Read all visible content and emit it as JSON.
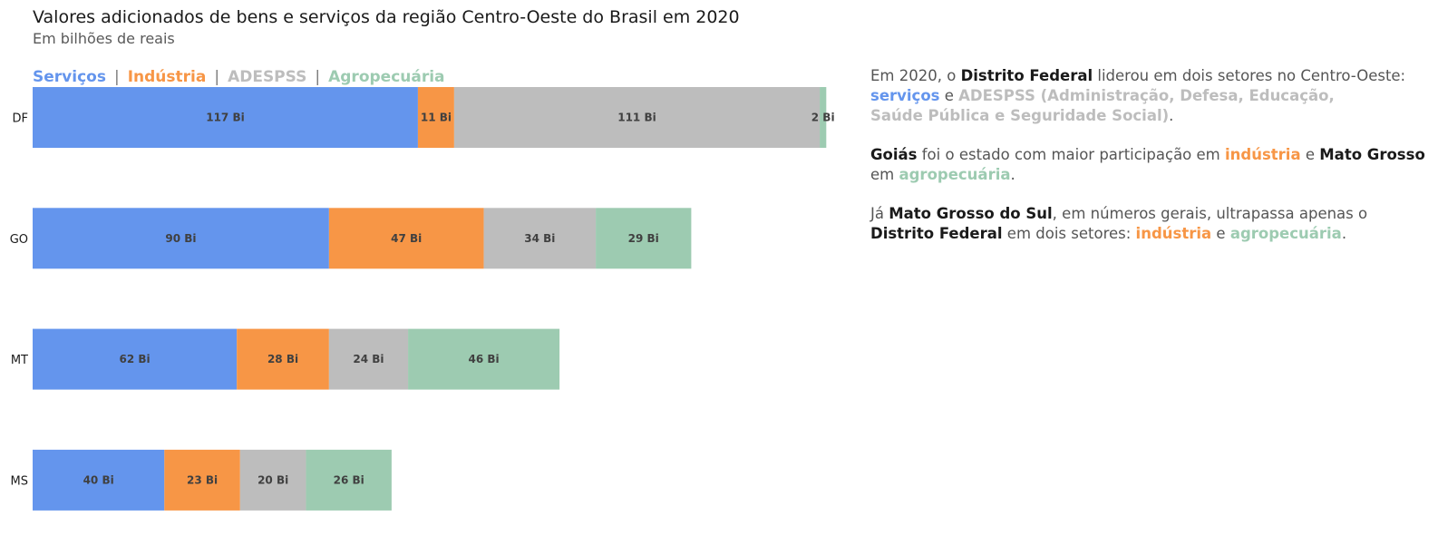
{
  "header": {
    "title": "Valores adicionados de bens e serviços da região Centro-Oeste do Brasil em 2020",
    "subtitle": "Em bilhões de reais"
  },
  "legend": {
    "items": [
      "Serviços",
      "Indústria",
      "ADESPSS",
      "Agropecuária"
    ],
    "separator": "|"
  },
  "chart_data": {
    "type": "bar",
    "orientation": "horizontal",
    "stacked": true,
    "categories": [
      "DF",
      "GO",
      "MT",
      "MS"
    ],
    "series": [
      {
        "name": "Serviços",
        "color": "#6495ed",
        "values": [
          117,
          90,
          62,
          40
        ]
      },
      {
        "name": "Indústria",
        "color": "#f79646",
        "values": [
          11,
          47,
          28,
          23
        ]
      },
      {
        "name": "ADESPSS",
        "color": "#bdbdbd",
        "values": [
          111,
          34,
          24,
          20
        ]
      },
      {
        "name": "Agropecuária",
        "color": "#9dcbb1",
        "values": [
          2,
          29,
          46,
          26
        ]
      }
    ],
    "value_label_suffix": " Bi",
    "unit": "Em bilhões de reais",
    "grid": false,
    "legend_position": "top-left"
  },
  "notes": {
    "p1": {
      "t1": "Em 2020, o ",
      "b1": "Distrito Federal",
      "t2": " liderou em dois setores no Centro-Oeste:",
      "c1": "serviços",
      "t3": " e ",
      "c2": "ADESPSS (Administração, Defesa, Educação,",
      "c3": "Saúde Pública e Seguridade Social)",
      "t4": "."
    },
    "p2": {
      "b1": "Goiás",
      "t1": " foi o estado com maior participação em ",
      "c1": "indústria",
      "t2": " e ",
      "b2": "Mato Grosso",
      "t3": "em ",
      "c2": "agropecuária",
      "t4": "."
    },
    "p3": {
      "t1": "Já ",
      "b1": "Mato Grosso do Sul",
      "t2": ", em números gerais, ultrapassa apenas o",
      "b2": "Distrito Federal",
      "t3": " em dois setores: ",
      "c1": "indústria",
      "t4": " e ",
      "c2": "agropecuária",
      "t5": "."
    }
  }
}
